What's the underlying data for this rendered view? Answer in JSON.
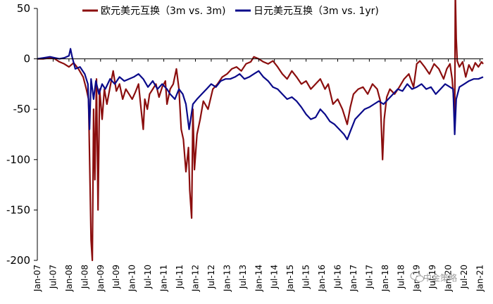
{
  "chart_data": {
    "type": "line",
    "title": "",
    "xlabel": "",
    "ylabel": "",
    "ylim": [
      -200,
      50
    ],
    "yticks": [
      50,
      0,
      -50,
      -100,
      -150,
      -200
    ],
    "xlim": [
      "Jan-07",
      "Jan-21"
    ],
    "xticks": [
      "Jan-07",
      "Jul-07",
      "Jan-08",
      "Jul-08",
      "Jan-09",
      "Jul-09",
      "Jan-10",
      "Jul-10",
      "Jan-11",
      "Jul-11",
      "Jan-12",
      "Jul-12",
      "Jan-13",
      "Jul-13",
      "Jan-14",
      "Jul-14",
      "Jan-15",
      "Jul-15",
      "Jan-16",
      "Jul-16",
      "Jan-17",
      "Jul-17",
      "Jan-18",
      "Jul-18",
      "Jan-19",
      "Jul-19",
      "Jan-20",
      "Jul-20",
      "Jan-21"
    ],
    "grid": false,
    "legend_position": "top",
    "series": [
      {
        "name": "欧元美元互换（3m vs. 3m)",
        "color": "#8b0e0e",
        "points": [
          [
            2007.0,
            0
          ],
          [
            2007.2,
            0
          ],
          [
            2007.4,
            1
          ],
          [
            2007.55,
            0
          ],
          [
            2007.7,
            -3
          ],
          [
            2007.85,
            -5
          ],
          [
            2008.0,
            -8
          ],
          [
            2008.15,
            -4
          ],
          [
            2008.3,
            -10
          ],
          [
            2008.45,
            -18
          ],
          [
            2008.55,
            -30
          ],
          [
            2008.62,
            -40
          ],
          [
            2008.7,
            -180
          ],
          [
            2008.74,
            -200
          ],
          [
            2008.78,
            -50
          ],
          [
            2008.82,
            -120
          ],
          [
            2008.87,
            -20
          ],
          [
            2008.92,
            -150
          ],
          [
            2008.97,
            -30
          ],
          [
            2009.05,
            -60
          ],
          [
            2009.12,
            -30
          ],
          [
            2009.2,
            -45
          ],
          [
            2009.3,
            -28
          ],
          [
            2009.4,
            -12
          ],
          [
            2009.5,
            -32
          ],
          [
            2009.6,
            -25
          ],
          [
            2009.7,
            -40
          ],
          [
            2009.8,
            -30
          ],
          [
            2009.9,
            -35
          ],
          [
            2010.0,
            -40
          ],
          [
            2010.1,
            -33
          ],
          [
            2010.2,
            -25
          ],
          [
            2010.3,
            -55
          ],
          [
            2010.35,
            -70
          ],
          [
            2010.4,
            -40
          ],
          [
            2010.48,
            -50
          ],
          [
            2010.55,
            -35
          ],
          [
            2010.65,
            -30
          ],
          [
            2010.75,
            -25
          ],
          [
            2010.85,
            -38
          ],
          [
            2010.95,
            -28
          ],
          [
            2011.05,
            -22
          ],
          [
            2011.1,
            -45
          ],
          [
            2011.2,
            -30
          ],
          [
            2011.3,
            -25
          ],
          [
            2011.4,
            -10
          ],
          [
            2011.48,
            -30
          ],
          [
            2011.55,
            -70
          ],
          [
            2011.62,
            -80
          ],
          [
            2011.7,
            -112
          ],
          [
            2011.78,
            -88
          ],
          [
            2011.82,
            -130
          ],
          [
            2011.88,
            -158
          ],
          [
            2011.92,
            -50
          ],
          [
            2011.97,
            -110
          ],
          [
            2012.05,
            -75
          ],
          [
            2012.15,
            -60
          ],
          [
            2012.25,
            -42
          ],
          [
            2012.4,
            -50
          ],
          [
            2012.55,
            -30
          ],
          [
            2012.7,
            -25
          ],
          [
            2012.85,
            -18
          ],
          [
            2013.0,
            -15
          ],
          [
            2013.15,
            -10
          ],
          [
            2013.3,
            -8
          ],
          [
            2013.45,
            -12
          ],
          [
            2013.6,
            -5
          ],
          [
            2013.75,
            -3
          ],
          [
            2013.85,
            2
          ],
          [
            2014.0,
            0
          ],
          [
            2014.15,
            -3
          ],
          [
            2014.3,
            -5
          ],
          [
            2014.45,
            -2
          ],
          [
            2014.6,
            -8
          ],
          [
            2014.75,
            -15
          ],
          [
            2014.9,
            -20
          ],
          [
            2015.05,
            -12
          ],
          [
            2015.2,
            -18
          ],
          [
            2015.35,
            -25
          ],
          [
            2015.5,
            -22
          ],
          [
            2015.65,
            -30
          ],
          [
            2015.8,
            -25
          ],
          [
            2015.95,
            -20
          ],
          [
            2016.1,
            -30
          ],
          [
            2016.2,
            -25
          ],
          [
            2016.35,
            -45
          ],
          [
            2016.5,
            -40
          ],
          [
            2016.65,
            -50
          ],
          [
            2016.8,
            -65
          ],
          [
            2016.9,
            -48
          ],
          [
            2017.0,
            -35
          ],
          [
            2017.15,
            -30
          ],
          [
            2017.3,
            -28
          ],
          [
            2017.45,
            -35
          ],
          [
            2017.6,
            -25
          ],
          [
            2017.75,
            -30
          ],
          [
            2017.85,
            -42
          ],
          [
            2017.92,
            -100
          ],
          [
            2017.97,
            -60
          ],
          [
            2018.05,
            -38
          ],
          [
            2018.15,
            -30
          ],
          [
            2018.3,
            -35
          ],
          [
            2018.45,
            -28
          ],
          [
            2018.6,
            -20
          ],
          [
            2018.75,
            -15
          ],
          [
            2018.9,
            -28
          ],
          [
            2019.0,
            -5
          ],
          [
            2019.1,
            -2
          ],
          [
            2019.25,
            -8
          ],
          [
            2019.4,
            -15
          ],
          [
            2019.55,
            -5
          ],
          [
            2019.7,
            -10
          ],
          [
            2019.85,
            -20
          ],
          [
            2019.95,
            -10
          ],
          [
            2020.05,
            -5
          ],
          [
            2020.12,
            -20
          ],
          [
            2020.17,
            -40
          ],
          [
            2020.2,
            -68
          ],
          [
            2020.22,
            66
          ],
          [
            2020.25,
            20
          ],
          [
            2020.28,
            -2
          ],
          [
            2020.35,
            -8
          ],
          [
            2020.45,
            -3
          ],
          [
            2020.55,
            -18
          ],
          [
            2020.65,
            -6
          ],
          [
            2020.75,
            -12
          ],
          [
            2020.85,
            -4
          ],
          [
            2020.95,
            -8
          ],
          [
            2021.05,
            -3
          ],
          [
            2021.1,
            -5
          ]
        ]
      },
      {
        "name": "日元美元互换（3m vs. 1yr)",
        "color": "#0a0a8a",
        "points": [
          [
            2007.0,
            0
          ],
          [
            2007.2,
            1
          ],
          [
            2007.4,
            2
          ],
          [
            2007.55,
            1
          ],
          [
            2007.7,
            0
          ],
          [
            2007.85,
            1
          ],
          [
            2008.0,
            3
          ],
          [
            2008.05,
            10
          ],
          [
            2008.1,
            2
          ],
          [
            2008.2,
            -10
          ],
          [
            2008.35,
            -8
          ],
          [
            2008.5,
            -15
          ],
          [
            2008.6,
            -25
          ],
          [
            2008.65,
            -70
          ],
          [
            2008.7,
            -20
          ],
          [
            2008.78,
            -40
          ],
          [
            2008.85,
            -22
          ],
          [
            2008.95,
            -35
          ],
          [
            2009.05,
            -25
          ],
          [
            2009.15,
            -30
          ],
          [
            2009.3,
            -20
          ],
          [
            2009.45,
            -25
          ],
          [
            2009.6,
            -18
          ],
          [
            2009.75,
            -22
          ],
          [
            2009.9,
            -20
          ],
          [
            2010.05,
            -18
          ],
          [
            2010.2,
            -15
          ],
          [
            2010.35,
            -20
          ],
          [
            2010.5,
            -28
          ],
          [
            2010.65,
            -22
          ],
          [
            2010.8,
            -30
          ],
          [
            2010.95,
            -25
          ],
          [
            2011.1,
            -30
          ],
          [
            2011.2,
            -35
          ],
          [
            2011.35,
            -40
          ],
          [
            2011.48,
            -30
          ],
          [
            2011.6,
            -35
          ],
          [
            2011.7,
            -45
          ],
          [
            2011.8,
            -70
          ],
          [
            2011.85,
            -60
          ],
          [
            2011.92,
            -45
          ],
          [
            2012.05,
            -40
          ],
          [
            2012.2,
            -35
          ],
          [
            2012.35,
            -30
          ],
          [
            2012.5,
            -25
          ],
          [
            2012.65,
            -28
          ],
          [
            2012.8,
            -22
          ],
          [
            2012.95,
            -20
          ],
          [
            2013.1,
            -20
          ],
          [
            2013.25,
            -18
          ],
          [
            2013.4,
            -15
          ],
          [
            2013.55,
            -20
          ],
          [
            2013.7,
            -18
          ],
          [
            2013.85,
            -15
          ],
          [
            2014.0,
            -12
          ],
          [
            2014.15,
            -18
          ],
          [
            2014.3,
            -22
          ],
          [
            2014.45,
            -28
          ],
          [
            2014.6,
            -30
          ],
          [
            2014.75,
            -35
          ],
          [
            2014.9,
            -40
          ],
          [
            2015.05,
            -38
          ],
          [
            2015.2,
            -42
          ],
          [
            2015.35,
            -48
          ],
          [
            2015.5,
            -55
          ],
          [
            2015.65,
            -60
          ],
          [
            2015.8,
            -58
          ],
          [
            2015.95,
            -50
          ],
          [
            2016.1,
            -55
          ],
          [
            2016.25,
            -62
          ],
          [
            2016.4,
            -65
          ],
          [
            2016.55,
            -70
          ],
          [
            2016.7,
            -75
          ],
          [
            2016.8,
            -80
          ],
          [
            2016.9,
            -72
          ],
          [
            2017.05,
            -60
          ],
          [
            2017.2,
            -55
          ],
          [
            2017.35,
            -50
          ],
          [
            2017.5,
            -48
          ],
          [
            2017.65,
            -45
          ],
          [
            2017.8,
            -42
          ],
          [
            2017.95,
            -45
          ],
          [
            2018.1,
            -40
          ],
          [
            2018.25,
            -35
          ],
          [
            2018.4,
            -30
          ],
          [
            2018.55,
            -32
          ],
          [
            2018.7,
            -25
          ],
          [
            2018.85,
            -30
          ],
          [
            2019.0,
            -28
          ],
          [
            2019.15,
            -25
          ],
          [
            2019.3,
            -30
          ],
          [
            2019.45,
            -28
          ],
          [
            2019.6,
            -35
          ],
          [
            2019.75,
            -30
          ],
          [
            2019.9,
            -25
          ],
          [
            2020.05,
            -28
          ],
          [
            2020.15,
            -30
          ],
          [
            2020.2,
            -75
          ],
          [
            2020.25,
            -40
          ],
          [
            2020.35,
            -28
          ],
          [
            2020.5,
            -25
          ],
          [
            2020.65,
            -22
          ],
          [
            2020.8,
            -20
          ],
          [
            2020.95,
            -20
          ],
          [
            2021.1,
            -18
          ]
        ]
      }
    ]
  },
  "watermark": "中金策略"
}
